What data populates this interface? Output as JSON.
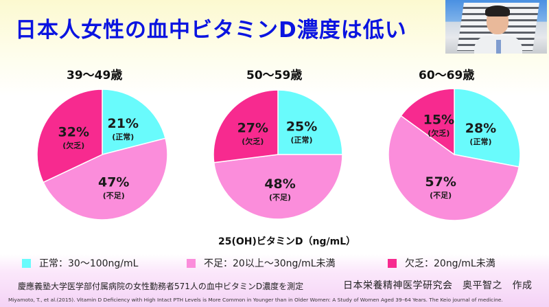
{
  "title": "日本人女性の血中ビタミンD濃度は低い",
  "photo": {
    "description": "presenter-video-thumbnail"
  },
  "colors": {
    "normal": "#69fbfc",
    "insufficient": "#fb8ddb",
    "deficient": "#f72a8f",
    "title": "#0a14e0"
  },
  "chart_data": [
    {
      "type": "pie",
      "title": "39〜49歳",
      "slices": [
        {
          "name": "正常",
          "value": 21,
          "label": "21%",
          "sublabel": "(正常)"
        },
        {
          "name": "不足",
          "value": 47,
          "label": "47%",
          "sublabel": "(不足)"
        },
        {
          "name": "欠乏",
          "value": 32,
          "label": "32%",
          "sublabel": "(欠乏)"
        }
      ]
    },
    {
      "type": "pie",
      "title": "50〜59歳",
      "slices": [
        {
          "name": "正常",
          "value": 25,
          "label": "25%",
          "sublabel": "(正常)"
        },
        {
          "name": "不足",
          "value": 48,
          "label": "48%",
          "sublabel": "(不足)"
        },
        {
          "name": "欠乏",
          "value": 27,
          "label": "27%",
          "sublabel": "(欠乏)"
        }
      ]
    },
    {
      "type": "pie",
      "title": "60〜69歳",
      "slices": [
        {
          "name": "正常",
          "value": 28,
          "label": "28%",
          "sublabel": "(正常)"
        },
        {
          "name": "不足",
          "value": 57,
          "label": "57%",
          "sublabel": "(不足)"
        },
        {
          "name": "欠乏",
          "value": 15,
          "label": "15%",
          "sublabel": "(欠乏)"
        }
      ]
    }
  ],
  "unit_label": "25(OH)ビタミンD（ng/mL）",
  "legend": [
    {
      "key": "normal",
      "text": "正常：30〜100ng/mL"
    },
    {
      "key": "insufficient",
      "text": "不足：20以上〜30ng/mL未満"
    },
    {
      "key": "deficient",
      "text": "欠乏：20ng/mL未満"
    }
  ],
  "note": "慶應義塾大学医学部付属病院の女性勤務者571人の血中ビタミンD濃度を測定",
  "credit": "日本栄養精神医学研究会　奥平智之　作成",
  "reference": "Miyamoto, T., et al.(2015). Vitamin D Deficiency with High Intact PTH Levels is More Common in Younger than in Older Women: A Study of Women Aged 39–64 Years. The Keio journal of medicine."
}
